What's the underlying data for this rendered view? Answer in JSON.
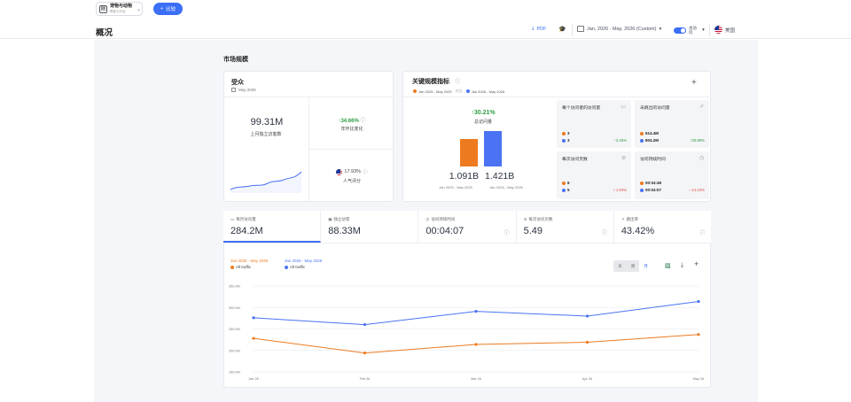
{
  "topbar": {
    "industry_title": "宠物与动物",
    "industry_sub": "预定义行业",
    "compare_label": "比较"
  },
  "header": {
    "page_title": "概况",
    "pdf_label": "PDF",
    "date_range": "Jan, 2026 - May, 2026 (Custom)",
    "toggle_label": "总访问",
    "country": "美国"
  },
  "section_title": "市场规模",
  "audience": {
    "title": "受众",
    "date": "May 2026",
    "unique_visitors": "99.31M",
    "unique_visitors_label": "上月独立访客数",
    "yoy_change": "↑34.66%",
    "yoy_label": "年环比变化",
    "popularity": "17.93%",
    "popularity_label": "人气评分"
  },
  "key_metrics": {
    "title": "关键规模指标",
    "legend_a": "Jan 2025 - May 2025",
    "legend_vs": "对比",
    "legend_b": "Jan 2026 - May 2026",
    "change": "↑30.21%",
    "change_label": "总访问量",
    "value_a": "1.091B",
    "value_b": "1.421B",
    "label_a": "Jan 2025 - May 2025",
    "label_b": "Jan 2026 - May 2026",
    "bar_a": 1.091,
    "bar_b": 1.421,
    "tiles": [
      {
        "title": "每个访问者的访问量",
        "a": "3",
        "b": "3",
        "change": "↑3.26%",
        "dir": "up"
      },
      {
        "title": "未跳出的访问量",
        "a": "614.4M",
        "b": "804.2M",
        "change": "↑30.89%",
        "dir": "up"
      },
      {
        "title": "每次访问页数",
        "a": "6",
        "b": "5",
        "change": "↓-1.63%",
        "dir": "down"
      },
      {
        "title": "访问持续时间",
        "a": "00:04:48",
        "b": "00:04:07",
        "change": "↓-14.24%",
        "dir": "down"
      }
    ]
  },
  "tabs": [
    {
      "label": "每月访问量",
      "value": "284.2M"
    },
    {
      "label": "独立访客",
      "value": "88.33M"
    },
    {
      "label": "访问持续时间",
      "value": "00:04:07"
    },
    {
      "label": "每次访问页数",
      "value": "5.49"
    },
    {
      "label": "跳出率",
      "value": "43.42%"
    }
  ],
  "chart_controls": {
    "granularity": [
      "天",
      "周",
      "月"
    ]
  },
  "chart_data": {
    "type": "line",
    "categories": [
      "Jan 26",
      "Feb 26",
      "Mar 26",
      "Apr 26",
      "May 26"
    ],
    "ylim": [
      150,
      350
    ],
    "yticks": [
      "350.0M",
      "300.0M",
      "250.0M",
      "200.0M",
      "150.0M"
    ],
    "series": [
      {
        "name": "Jan 2025 - May 2025",
        "sublabel": "All traffic",
        "color": "#ed7a1f",
        "values": [
          228,
          194,
          214,
          219,
          237
        ]
      },
      {
        "name": "Jan 2026 - May 2026",
        "sublabel": "All traffic",
        "color": "#4a72f2",
        "values": [
          276,
          260,
          291,
          280,
          314
        ]
      }
    ]
  }
}
